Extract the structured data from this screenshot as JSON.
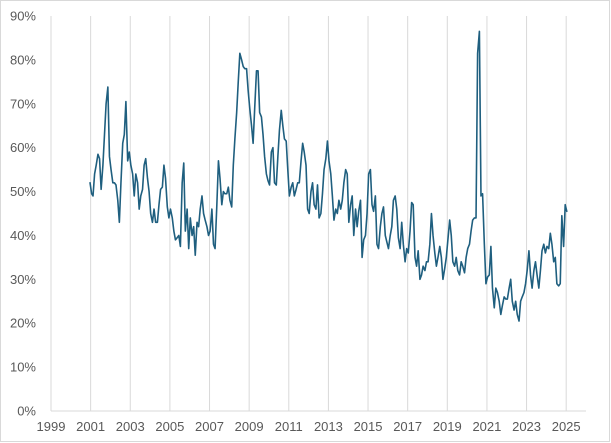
{
  "chart_data": {
    "type": "line",
    "title": "",
    "xlabel": "",
    "ylabel": "",
    "xlim": [
      1999.0,
      2026.0
    ],
    "ylim": [
      0,
      90
    ],
    "y_ticks": [
      0,
      10,
      20,
      30,
      40,
      50,
      60,
      70,
      80,
      90
    ],
    "y_tick_labels": [
      "0%",
      "10%",
      "20%",
      "30%",
      "40%",
      "50%",
      "60%",
      "70%",
      "80%",
      "90%"
    ],
    "x_ticks": [
      1999,
      2001,
      2003,
      2005,
      2007,
      2009,
      2011,
      2013,
      2015,
      2017,
      2019,
      2021,
      2023,
      2025
    ],
    "x_tick_labels": [
      "1999",
      "2001",
      "2003",
      "2005",
      "2007",
      "2009",
      "2011",
      "2013",
      "2015",
      "2017",
      "2019",
      "2021",
      "2023",
      "2025"
    ],
    "grid": {
      "vertical": true,
      "horizontal": false
    },
    "legend": "none",
    "line_color": "#1f5f7f",
    "gridline_color": "#d9d9d9",
    "series": [
      {
        "x": [
          2000.97,
          2001.05,
          2001.12,
          2001.2,
          2001.28,
          2001.37,
          2001.45,
          2001.53,
          2001.62,
          2001.7,
          2001.78,
          2001.87,
          2001.95,
          2002.03,
          2002.12,
          2002.2,
          2002.28,
          2002.37,
          2002.45,
          2002.53,
          2002.62,
          2002.7,
          2002.78,
          2002.87,
          2002.95,
          2003.03,
          2003.12,
          2003.2,
          2003.28,
          2003.37,
          2003.45,
          2003.53,
          2003.62,
          2003.7,
          2003.78,
          2003.87,
          2003.95,
          2004.03,
          2004.12,
          2004.2,
          2004.28,
          2004.37,
          2004.45,
          2004.53,
          2004.62,
          2004.7,
          2004.78,
          2004.87,
          2004.95,
          2005.03,
          2005.12,
          2005.2,
          2005.28,
          2005.37,
          2005.45,
          2005.53,
          2005.62,
          2005.7,
          2005.78,
          2005.87,
          2005.95,
          2006.03,
          2006.12,
          2006.2,
          2006.28,
          2006.37,
          2006.45,
          2006.53,
          2006.62,
          2006.7,
          2006.78,
          2006.87,
          2006.95,
          2007.03,
          2007.12,
          2007.2,
          2007.28,
          2007.37,
          2007.45,
          2007.53,
          2007.62,
          2007.7,
          2007.78,
          2007.87,
          2007.95,
          2008.03,
          2008.12,
          2008.2,
          2008.28,
          2008.37,
          2008.45,
          2008.53,
          2008.62,
          2008.7,
          2008.78,
          2008.87,
          2008.95,
          2009.03,
          2009.12,
          2009.2,
          2009.28,
          2009.37,
          2009.45,
          2009.53,
          2009.62,
          2009.7,
          2009.78,
          2009.87,
          2009.95,
          2010.03,
          2010.12,
          2010.2,
          2010.28,
          2010.37,
          2010.45,
          2010.53,
          2010.62,
          2010.7,
          2010.78,
          2010.87,
          2010.95,
          2011.03,
          2011.12,
          2011.2,
          2011.28,
          2011.37,
          2011.45,
          2011.53,
          2011.62,
          2011.7,
          2011.78,
          2011.87,
          2011.95,
          2012.03,
          2012.12,
          2012.2,
          2012.28,
          2012.37,
          2012.45,
          2012.53,
          2012.62,
          2012.7,
          2012.78,
          2012.87,
          2012.95,
          2013.03,
          2013.12,
          2013.2,
          2013.28,
          2013.37,
          2013.45,
          2013.53,
          2013.62,
          2013.7,
          2013.78,
          2013.87,
          2013.95,
          2014.03,
          2014.12,
          2014.2,
          2014.28,
          2014.37,
          2014.45,
          2014.53,
          2014.62,
          2014.7,
          2014.78,
          2014.87,
          2014.95,
          2015.03,
          2015.12,
          2015.2,
          2015.28,
          2015.37,
          2015.45,
          2015.53,
          2015.62,
          2015.7,
          2015.78,
          2015.87,
          2015.95,
          2016.03,
          2016.12,
          2016.2,
          2016.28,
          2016.37,
          2016.45,
          2016.53,
          2016.62,
          2016.7,
          2016.78,
          2016.87,
          2016.95,
          2017.03,
          2017.12,
          2017.2,
          2017.28,
          2017.37,
          2017.45,
          2017.53,
          2017.62,
          2017.7,
          2017.78,
          2017.87,
          2017.95,
          2018.03,
          2018.12,
          2018.2,
          2018.28,
          2018.37,
          2018.45,
          2018.53,
          2018.62,
          2018.7,
          2018.78,
          2018.87,
          2018.95,
          2019.03,
          2019.12,
          2019.2,
          2019.28,
          2019.37,
          2019.45,
          2019.53,
          2019.62,
          2019.7,
          2019.78,
          2019.87,
          2019.95,
          2020.03,
          2020.12,
          2020.2,
          2020.28,
          2020.37,
          2020.45,
          2020.53,
          2020.62,
          2020.7,
          2020.78,
          2020.87,
          2020.95,
          2021.03,
          2021.12,
          2021.2,
          2021.28,
          2021.37,
          2021.45,
          2021.53,
          2021.62,
          2021.7,
          2021.78,
          2021.87,
          2021.95,
          2022.03,
          2022.12,
          2022.2,
          2022.28,
          2022.37,
          2022.45,
          2022.53,
          2022.62,
          2022.7,
          2022.78,
          2022.87,
          2022.95,
          2023.03,
          2023.12,
          2023.2,
          2023.28,
          2023.37,
          2023.45,
          2023.53,
          2023.62,
          2023.7,
          2023.78,
          2023.87,
          2023.95,
          2024.03,
          2024.12,
          2024.2,
          2024.28,
          2024.37,
          2024.45,
          2024.53,
          2024.62,
          2024.7,
          2024.78,
          2024.87,
          2024.95,
          2025.03
        ],
        "y": [
          52,
          49.5,
          49,
          54,
          56,
          58.5,
          57.5,
          50.5,
          56,
          63,
          70,
          73.8,
          58,
          55,
          52,
          52,
          51.5,
          48,
          43,
          52,
          61,
          63,
          70.5,
          57,
          59,
          56,
          54,
          49,
          54,
          52,
          46,
          49,
          50.5,
          56,
          57.5,
          53,
          50,
          45,
          43,
          46,
          43,
          43,
          47,
          50.5,
          51,
          56,
          53,
          46.5,
          44,
          46,
          44,
          41,
          39,
          39.5,
          40,
          37.5,
          52,
          56.5,
          41,
          46,
          37,
          44,
          40,
          42,
          35.5,
          43,
          42,
          46,
          49,
          45,
          43.5,
          42,
          40,
          41,
          46,
          38,
          37,
          47,
          57,
          53,
          47,
          50,
          49.5,
          49.5,
          51,
          48,
          46.5,
          56,
          62,
          68,
          75,
          81.5,
          80,
          78.5,
          78,
          78,
          73,
          69,
          65,
          61,
          69,
          77.5,
          77.5,
          68,
          67,
          63,
          58,
          54,
          52.5,
          51.5,
          59,
          60,
          52,
          51.5,
          58,
          64,
          68.5,
          65,
          62,
          61.5,
          55,
          49,
          51,
          52,
          49,
          50.5,
          52,
          52,
          57,
          61,
          59,
          56,
          46,
          45,
          50,
          52,
          47,
          46,
          51.5,
          44,
          45,
          49.5,
          55,
          57.5,
          61.5,
          57,
          54,
          49,
          43.5,
          46,
          45,
          48,
          46,
          48,
          52,
          55,
          54,
          43,
          47,
          49,
          40,
          46,
          42,
          45.5,
          48,
          35,
          39,
          40,
          45,
          54,
          55,
          47,
          45.5,
          49,
          38,
          37,
          42,
          45,
          46.5,
          40,
          38.5,
          37,
          40,
          42,
          48,
          49,
          46,
          39.5,
          37,
          43,
          38,
          34,
          37,
          36,
          41,
          47.5,
          47,
          35,
          33,
          36.5,
          30,
          31,
          33,
          32,
          34,
          34,
          38,
          45,
          40,
          36,
          33,
          35,
          37.5,
          35,
          30,
          32.5,
          35,
          39,
          43.5,
          40,
          34,
          33,
          35,
          32,
          31,
          34,
          33,
          31.5,
          35,
          37,
          38,
          41,
          43.5,
          44,
          44,
          81.5,
          86.5,
          49,
          49.5,
          38,
          29,
          30.5,
          31,
          37.5,
          28,
          23.5,
          28,
          27,
          25,
          22,
          24,
          26,
          25.5,
          25.5,
          28,
          30,
          25,
          23,
          25,
          22,
          20.5,
          25,
          26,
          27,
          29,
          32,
          36.5,
          31,
          28,
          32,
          34,
          31,
          28,
          32,
          36.5,
          38,
          36,
          37.5,
          37,
          40.5,
          38,
          34,
          35,
          29,
          28.5,
          29,
          44.5,
          37.5,
          47,
          45.5
        ]
      }
    ]
  }
}
